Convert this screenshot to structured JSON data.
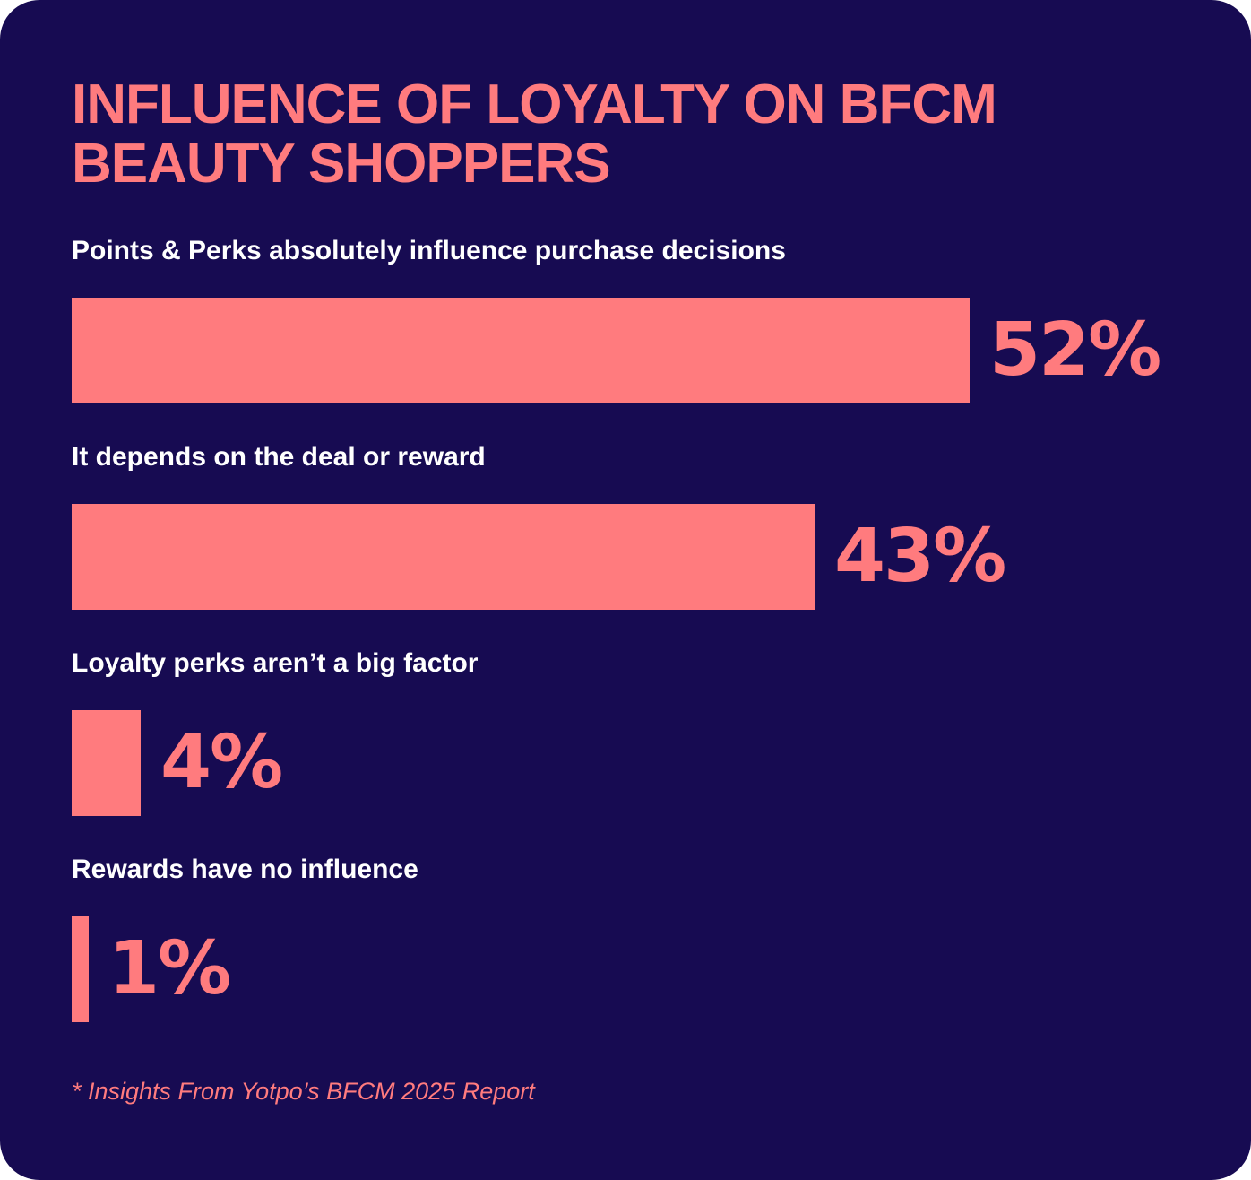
{
  "colors": {
    "background": "#170b52",
    "accent": "#ff7b7e",
    "label": "#ffffff"
  },
  "chart_data": {
    "type": "bar",
    "orientation": "horizontal",
    "title": "INFLUENCE OF LOYALTY ON BFCM BEAUTY SHOPPERS",
    "categories": [
      "Points & Perks absolutely influence purchase decisions",
      "It depends on the deal or reward",
      "Loyalty perks aren’t a big factor",
      "Rewards have no influence"
    ],
    "values": [
      52,
      43,
      4,
      1
    ],
    "value_labels": [
      "52%",
      "43%",
      "4%",
      "1%"
    ],
    "unit": "%",
    "xlim": [
      0,
      52
    ],
    "grid": false,
    "legend": "none",
    "footnote": "* Insights From Yotpo’s BFCM 2025 Report"
  }
}
